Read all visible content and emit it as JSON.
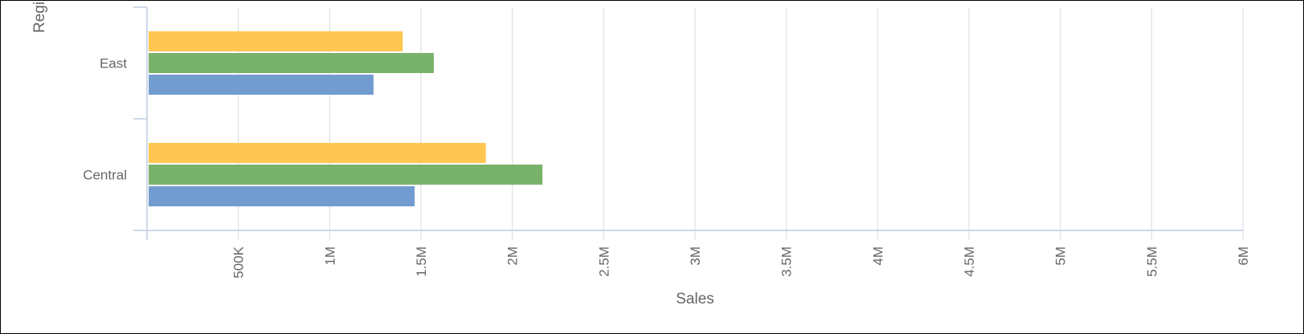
{
  "chart_data": {
    "type": "bar",
    "orientation": "horizontal",
    "xlabel": "Sales",
    "ylabel": "Region",
    "categories": [
      "East",
      "Central"
    ],
    "x_ticks": [
      "500K",
      "1M",
      "1.5M",
      "2M",
      "2.5M",
      "3M",
      "3.5M",
      "4M",
      "4.5M",
      "5M",
      "5.5M",
      "6M"
    ],
    "xlim": [
      0,
      6000000
    ],
    "grid": true,
    "series": [
      {
        "color": "#ffc652",
        "values": [
          1400000,
          1855000
        ]
      },
      {
        "color": "#79b26a",
        "values": [
          1570000,
          2165000
        ]
      },
      {
        "color": "#729ccf",
        "values": [
          1240000,
          1465000
        ]
      }
    ]
  }
}
